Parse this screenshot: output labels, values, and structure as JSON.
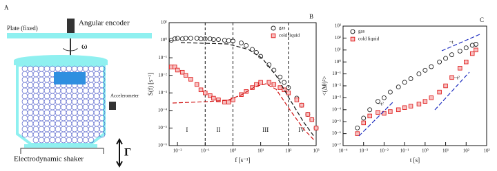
{
  "panel_a": {
    "label": "A",
    "plate": "Plate (fixed)",
    "encoder": "Angular encoder",
    "omega": "ω",
    "accelerometer": "Accelerometer",
    "shaker": "Electrodynamic shaker",
    "gamma": "Γ"
  },
  "chart_data": [
    {
      "type": "scatter",
      "panel": "B",
      "xlabel": "f  [s⁻¹]",
      "ylabel": "S(f)  [s⁻¹]",
      "log_x": true,
      "log_y": true,
      "xlim": [
        0.005,
        1000
      ],
      "ylim": [
        1e-06,
        10
      ],
      "xticks": [
        {
          "value": 0.01,
          "label": "10⁻²"
        },
        {
          "value": 0.1,
          "label": "10⁻¹"
        },
        {
          "value": 1,
          "label": "10⁰"
        },
        {
          "value": 10,
          "label": "10¹"
        },
        {
          "value": 100,
          "label": "10²"
        },
        {
          "value": 1000,
          "label": "10³"
        }
      ],
      "yticks": [
        {
          "value": 1e-06,
          "label": "10⁻⁶"
        },
        {
          "value": 1e-05,
          "label": "10⁻⁵"
        },
        {
          "value": 0.0001,
          "label": "10⁻⁴"
        },
        {
          "value": 0.001,
          "label": "10⁻³"
        },
        {
          "value": 0.01,
          "label": "10⁻²"
        },
        {
          "value": 0.1,
          "label": "10⁻¹"
        },
        {
          "value": 1,
          "label": "10⁰"
        },
        {
          "value": 10,
          "label": "10¹"
        }
      ],
      "vlines": [
        0.1,
        1,
        100
      ],
      "regions": [
        "I",
        "II",
        "III",
        "IV"
      ],
      "x": [
        0.006,
        0.008,
        0.01,
        0.015,
        0.02,
        0.03,
        0.05,
        0.07,
        0.1,
        0.15,
        0.2,
        0.3,
        0.5,
        0.7,
        1,
        2,
        3,
        5,
        7,
        10,
        20,
        30,
        50,
        70,
        100,
        200,
        300,
        500,
        700,
        1000
      ],
      "series": [
        {
          "name": "gas",
          "color": "#222222",
          "marker": "circle",
          "values": [
            1.0,
            1.2,
            1.3,
            1.2,
            1.3,
            1.3,
            1.3,
            1.2,
            1.2,
            1.2,
            1.1,
            1.1,
            1.0,
            0.95,
            0.9,
            0.7,
            0.5,
            0.3,
            0.2,
            0.12,
            0.04,
            0.02,
            0.008,
            0.004,
            0.002,
            0.0005,
            0.0002,
            6e-05,
            3e-05,
            1e-05
          ]
        },
        {
          "name": "cold liquid",
          "color": "#e02020",
          "marker": "square",
          "values": [
            0.03,
            0.03,
            0.02,
            0.015,
            0.01,
            0.006,
            0.003,
            0.0015,
            0.001,
            0.0007,
            0.0005,
            0.0004,
            0.0003,
            0.0003,
            0.0004,
            0.0008,
            0.0012,
            0.002,
            0.003,
            0.004,
            0.004,
            0.003,
            0.002,
            0.0015,
            0.001,
            0.0004,
            0.0002,
            6e-05,
            3e-05,
            1e-05
          ]
        }
      ]
    },
    {
      "type": "scatter",
      "panel": "C",
      "xlabel": "t  [s]",
      "ylabel": "<(Δθ)²>",
      "log_x": true,
      "log_y": true,
      "xlim": [
        0.0001,
        1000
      ],
      "ylim": [
        1e-07,
        1000
      ],
      "xticks": [
        {
          "value": 0.0001,
          "label": "10⁻⁴"
        },
        {
          "value": 0.001,
          "label": "10⁻³"
        },
        {
          "value": 0.01,
          "label": "10⁻²"
        },
        {
          "value": 0.1,
          "label": "10⁻¹"
        },
        {
          "value": 1,
          "label": "10⁰"
        },
        {
          "value": 10,
          "label": "10¹"
        },
        {
          "value": 100,
          "label": "10²"
        },
        {
          "value": 1000,
          "label": "10³"
        }
      ],
      "yticks": [
        {
          "value": 1e-07,
          "label": "10⁻⁷"
        },
        {
          "value": 1e-06,
          "label": "10⁻⁶"
        },
        {
          "value": 1e-05,
          "label": "10⁻⁵"
        },
        {
          "value": 0.0001,
          "label": "10⁻⁴"
        },
        {
          "value": 0.001,
          "label": "10⁻³"
        },
        {
          "value": 0.01,
          "label": "10⁻²"
        },
        {
          "value": 0.1,
          "label": "10⁻¹"
        },
        {
          "value": 1,
          "label": "10⁰"
        },
        {
          "value": 10,
          "label": "10¹"
        },
        {
          "value": 100,
          "label": "10²"
        },
        {
          "value": 1000,
          "label": "10³"
        }
      ],
      "annotations": [
        "~t²",
        "~t",
        "~t²"
      ],
      "x": [
        0.0005,
        0.001,
        0.002,
        0.005,
        0.01,
        0.02,
        0.05,
        0.1,
        0.2,
        0.5,
        1,
        2,
        5,
        10,
        20,
        50,
        100,
        200,
        300
      ],
      "series": [
        {
          "name": "gas",
          "color": "#222222",
          "marker": "circle",
          "values": [
            3e-06,
            2e-05,
            0.0001,
            0.0005,
            0.001,
            0.003,
            0.008,
            0.02,
            0.04,
            0.1,
            0.2,
            0.4,
            1,
            2,
            4,
            8,
            15,
            25,
            30
          ]
        },
        {
          "name": "cold liquid",
          "color": "#e02020",
          "marker": "square",
          "values": [
            1e-06,
            8e-06,
            3e-05,
            6e-05,
            5e-05,
            7e-05,
            0.0001,
            0.00015,
            0.0002,
            0.0003,
            0.0005,
            0.001,
            0.003,
            0.01,
            0.05,
            0.3,
            1,
            5,
            10
          ]
        }
      ]
    }
  ]
}
